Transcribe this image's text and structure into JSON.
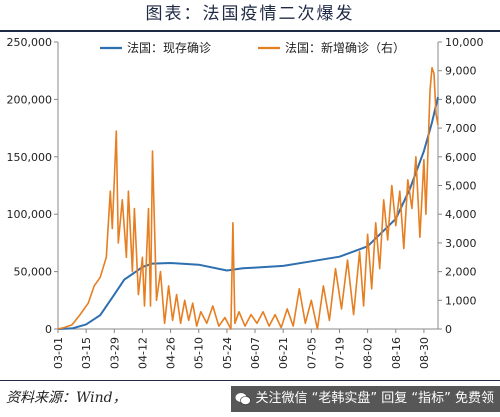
{
  "header": {
    "title": "图表：法国疫情二次爆发"
  },
  "footer": {
    "source": "资料来源：Wind，",
    "watermark": "关注微信 “老韩实盘” 回复 “指标” 免费领"
  },
  "icons": {
    "watermark": "wechat-icon"
  },
  "colors": {
    "left_series": "#2e6fb0",
    "right_series": "#e67e22",
    "axis": "#888888"
  },
  "chart_data": {
    "type": "line",
    "x_tick_labels": [
      "03-01",
      "03-15",
      "03-29",
      "04-12",
      "04-26",
      "05-10",
      "05-24",
      "06-07",
      "06-21",
      "07-05",
      "07-19",
      "08-02",
      "08-16",
      "08-30"
    ],
    "x_range": [
      "03-01",
      "09-06"
    ],
    "y_left": {
      "ticks": [
        "0",
        "50,000",
        "100,000",
        "150,000",
        "200,000",
        "250,000"
      ],
      "lim": [
        0,
        250000
      ]
    },
    "y_right": {
      "ticks": [
        "0",
        "1,000",
        "2,000",
        "3,000",
        "4,000",
        "5,000",
        "6,000",
        "7,000",
        "8,000",
        "9,000",
        "10,000"
      ],
      "lim": [
        0,
        10000
      ]
    },
    "legend_position": "top",
    "series": [
      {
        "name": "法国：现存确诊",
        "axis": "left",
        "color": "#2e6fb0",
        "points": [
          [
            "03-01",
            0
          ],
          [
            "03-08",
            500
          ],
          [
            "03-15",
            4000
          ],
          [
            "03-22",
            12000
          ],
          [
            "03-29",
            30000
          ],
          [
            "04-03",
            43000
          ],
          [
            "04-08",
            49000
          ],
          [
            "04-12",
            54000
          ],
          [
            "04-17",
            57000
          ],
          [
            "04-26",
            57500
          ],
          [
            "05-10",
            56000
          ],
          [
            "05-24",
            51000
          ],
          [
            "06-01",
            53000
          ],
          [
            "06-07",
            53500
          ],
          [
            "06-21",
            55000
          ],
          [
            "07-05",
            59000
          ],
          [
            "07-19",
            63000
          ],
          [
            "08-02",
            72000
          ],
          [
            "08-16",
            96000
          ],
          [
            "08-23",
            122000
          ],
          [
            "08-30",
            155000
          ],
          [
            "09-03",
            180000
          ],
          [
            "09-06",
            202000
          ]
        ]
      },
      {
        "name": "法国：新增确诊（右）",
        "axis": "right",
        "color": "#e67e22",
        "points": [
          [
            "03-01",
            0
          ],
          [
            "03-04",
            50
          ],
          [
            "03-08",
            150
          ],
          [
            "03-12",
            500
          ],
          [
            "03-16",
            900
          ],
          [
            "03-19",
            1500
          ],
          [
            "03-22",
            1800
          ],
          [
            "03-25",
            2500
          ],
          [
            "03-27",
            4800
          ],
          [
            "03-28",
            3500
          ],
          [
            "03-30",
            6900
          ],
          [
            "03-31",
            3000
          ],
          [
            "04-02",
            4500
          ],
          [
            "04-04",
            2500
          ],
          [
            "04-05",
            4800
          ],
          [
            "04-07",
            2000
          ],
          [
            "04-08",
            4200
          ],
          [
            "04-10",
            1200
          ],
          [
            "04-12",
            2500
          ],
          [
            "04-13",
            800
          ],
          [
            "04-15",
            4200
          ],
          [
            "04-16",
            800
          ],
          [
            "04-17",
            6200
          ],
          [
            "04-19",
            1000
          ],
          [
            "04-21",
            2000
          ],
          [
            "04-23",
            200
          ],
          [
            "04-25",
            1500
          ],
          [
            "04-27",
            300
          ],
          [
            "04-29",
            1200
          ],
          [
            "05-01",
            200
          ],
          [
            "05-03",
            1000
          ],
          [
            "05-05",
            300
          ],
          [
            "05-07",
            900
          ],
          [
            "05-09",
            100
          ],
          [
            "05-11",
            600
          ],
          [
            "05-14",
            200
          ],
          [
            "05-17",
            800
          ],
          [
            "05-20",
            100
          ],
          [
            "05-23",
            400
          ],
          [
            "05-26",
            0
          ],
          [
            "05-27",
            3700
          ],
          [
            "05-28",
            200
          ],
          [
            "05-30",
            600
          ],
          [
            "06-02",
            100
          ],
          [
            "06-05",
            500
          ],
          [
            "06-08",
            200
          ],
          [
            "06-11",
            600
          ],
          [
            "06-14",
            100
          ],
          [
            "06-17",
            500
          ],
          [
            "06-20",
            50
          ],
          [
            "06-23",
            700
          ],
          [
            "06-26",
            100
          ],
          [
            "06-29",
            1400
          ],
          [
            "07-02",
            200
          ],
          [
            "07-05",
            1000
          ],
          [
            "07-08",
            0
          ],
          [
            "07-11",
            1500
          ],
          [
            "07-14",
            300
          ],
          [
            "07-17",
            2100
          ],
          [
            "07-20",
            700
          ],
          [
            "07-23",
            2400
          ],
          [
            "07-26",
            500
          ],
          [
            "07-29",
            2700
          ],
          [
            "07-31",
            800
          ],
          [
            "08-02",
            3300
          ],
          [
            "08-04",
            1400
          ],
          [
            "08-06",
            3700
          ],
          [
            "08-08",
            2100
          ],
          [
            "08-10",
            4500
          ],
          [
            "08-12",
            3100
          ],
          [
            "08-14",
            5000
          ],
          [
            "08-16",
            3600
          ],
          [
            "08-18",
            4800
          ],
          [
            "08-20",
            2800
          ],
          [
            "08-22",
            5200
          ],
          [
            "08-24",
            4200
          ],
          [
            "08-26",
            6000
          ],
          [
            "08-28",
            3200
          ],
          [
            "08-30",
            5900
          ],
          [
            "08-31",
            4000
          ],
          [
            "09-02",
            8300
          ],
          [
            "09-03",
            9100
          ],
          [
            "09-04",
            8900
          ],
          [
            "09-05",
            7500
          ],
          [
            "09-06",
            7100
          ]
        ]
      }
    ]
  }
}
